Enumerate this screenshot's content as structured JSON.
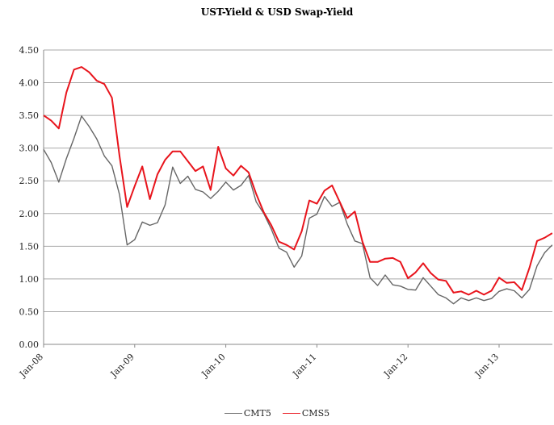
{
  "chart_data": {
    "type": "line",
    "title": "UST-Yield & USD Swap-Yield",
    "xlabel": "",
    "ylabel": "",
    "ylim": [
      0,
      4.5
    ],
    "yticks": [
      "0.00",
      "0.50",
      "1.00",
      "1.50",
      "2.00",
      "2.50",
      "3.00",
      "3.50",
      "4.00",
      "4.50"
    ],
    "xticks": [
      "Jan-08",
      "Jan-09",
      "Jan-10",
      "Jan-11",
      "Jan-12",
      "Jan-13"
    ],
    "x_start": "Jan-08",
    "x_interval": "monthly",
    "grid": "horizontal",
    "legend_position": "bottom-center",
    "series": [
      {
        "name": "CMT5",
        "color": "#666666",
        "values": [
          2.98,
          2.78,
          2.48,
          2.84,
          3.15,
          3.49,
          3.33,
          3.14,
          2.88,
          2.73,
          2.29,
          1.52,
          1.6,
          1.87,
          1.82,
          1.86,
          2.13,
          2.71,
          2.46,
          2.57,
          2.37,
          2.33,
          2.23,
          2.34,
          2.48,
          2.36,
          2.43,
          2.58,
          2.18,
          2.0,
          1.76,
          1.47,
          1.41,
          1.18,
          1.35,
          1.93,
          1.99,
          2.26,
          2.11,
          2.17,
          1.84,
          1.58,
          1.54,
          1.02,
          0.9,
          1.06,
          0.91,
          0.89,
          0.84,
          0.83,
          1.02,
          0.89,
          0.76,
          0.71,
          0.62,
          0.71,
          0.67,
          0.71,
          0.67,
          0.7,
          0.81,
          0.85,
          0.82,
          0.71,
          0.84,
          1.2,
          1.4,
          1.52
        ]
      },
      {
        "name": "CMS5",
        "color": "#e8141c",
        "values": [
          3.5,
          3.42,
          3.3,
          3.85,
          4.2,
          4.24,
          4.16,
          4.03,
          3.98,
          3.77,
          2.88,
          2.1,
          2.42,
          2.72,
          2.22,
          2.6,
          2.82,
          2.95,
          2.95,
          2.8,
          2.65,
          2.72,
          2.36,
          3.02,
          2.69,
          2.58,
          2.73,
          2.63,
          2.3,
          2.02,
          1.82,
          1.57,
          1.52,
          1.45,
          1.73,
          2.2,
          2.15,
          2.35,
          2.43,
          2.18,
          1.93,
          2.03,
          1.57,
          1.26,
          1.26,
          1.31,
          1.32,
          1.26,
          1.01,
          1.1,
          1.24,
          1.09,
          0.99,
          0.97,
          0.79,
          0.81,
          0.76,
          0.82,
          0.76,
          0.82,
          1.02,
          0.94,
          0.95,
          0.83,
          1.17,
          1.58,
          1.63,
          1.7
        ]
      }
    ]
  }
}
